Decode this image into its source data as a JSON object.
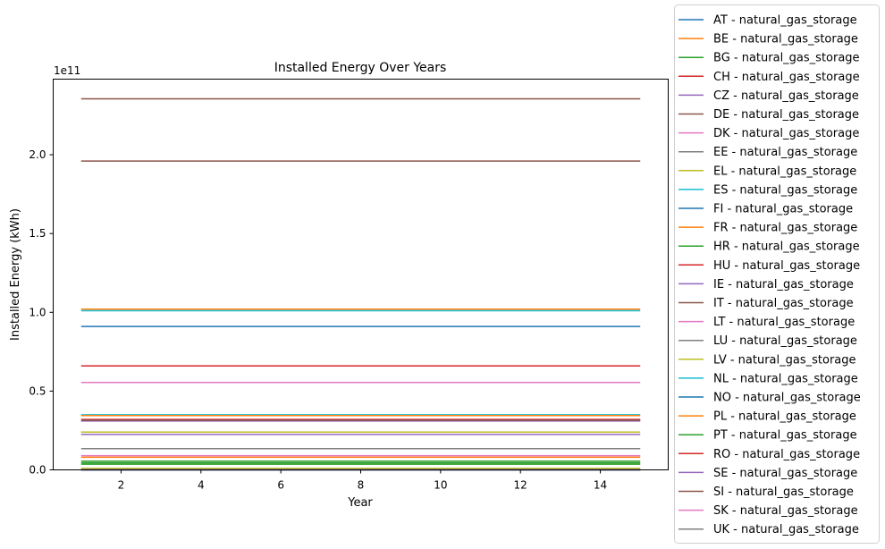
{
  "chart_data": {
    "type": "line",
    "title": "Installed Energy Over Years",
    "xlabel": "Year",
    "ylabel": "Installed Energy (kWh)",
    "y_offset_label": "1e11",
    "xlim": [
      0.3,
      15.7
    ],
    "ylim": [
      0,
      248000000000.0
    ],
    "x_ticks": [
      2,
      4,
      6,
      8,
      10,
      12,
      14
    ],
    "x_tick_labels": [
      "2",
      "4",
      "6",
      "8",
      "10",
      "12",
      "14"
    ],
    "y_ticks": [
      0,
      50000000000.0,
      100000000000.0,
      150000000000.0,
      200000000000.0
    ],
    "y_tick_labels": [
      "0.0",
      "0.5",
      "1.0",
      "1.5",
      "2.0"
    ],
    "grid": false,
    "legend_position": "outside right",
    "x": [
      1,
      2,
      3,
      4,
      5,
      6,
      7,
      8,
      9,
      10,
      11,
      12,
      13,
      14,
      15
    ],
    "series": [
      {
        "name": "AT - natural_gas_storage",
        "color": "#1f77b4",
        "value": 91000000000.0
      },
      {
        "name": "BE - natural_gas_storage",
        "color": "#ff7f0e",
        "value": 8000000000.0
      },
      {
        "name": "BG - natural_gas_storage",
        "color": "#2ca02c",
        "value": 5500000000.0
      },
      {
        "name": "CH - natural_gas_storage",
        "color": "#d62728",
        "value": 100000000.0
      },
      {
        "name": "CZ - natural_gas_storage",
        "color": "#9467bd",
        "value": 31000000000.0
      },
      {
        "name": "DE - natural_gas_storage",
        "color": "#8c564b",
        "value": 235500000000.0
      },
      {
        "name": "DK - natural_gas_storage",
        "color": "#e377c2",
        "value": 9000000000.0
      },
      {
        "name": "EE - natural_gas_storage",
        "color": "#7f7f7f",
        "value": 0
      },
      {
        "name": "EL - natural_gas_storage",
        "color": "#bcbd22",
        "value": 1000000000.0
      },
      {
        "name": "ES - natural_gas_storage",
        "color": "#17becf",
        "value": 35000000000.0
      },
      {
        "name": "FI - natural_gas_storage",
        "color": "#1f77b4",
        "value": 0
      },
      {
        "name": "FR - natural_gas_storage",
        "color": "#ff7f0e",
        "value": 102000000000.0
      },
      {
        "name": "HR - natural_gas_storage",
        "color": "#2ca02c",
        "value": 4500000000.0
      },
      {
        "name": "HU - natural_gas_storage",
        "color": "#d62728",
        "value": 66000000000.0
      },
      {
        "name": "IE - natural_gas_storage",
        "color": "#9467bd",
        "value": 22500000000.0
      },
      {
        "name": "IT - natural_gas_storage",
        "color": "#8c564b",
        "value": 196000000000.0
      },
      {
        "name": "LT - natural_gas_storage",
        "color": "#e377c2",
        "value": 0
      },
      {
        "name": "LU - natural_gas_storage",
        "color": "#7f7f7f",
        "value": 0
      },
      {
        "name": "LV - natural_gas_storage",
        "color": "#bcbd22",
        "value": 24000000000.0
      },
      {
        "name": "NL - natural_gas_storage",
        "color": "#17becf",
        "value": 101000000000.0
      },
      {
        "name": "NO - natural_gas_storage",
        "color": "#1f77b4",
        "value": 0
      },
      {
        "name": "PL - natural_gas_storage",
        "color": "#ff7f0e",
        "value": 34500000000.0
      },
      {
        "name": "PT - natural_gas_storage",
        "color": "#2ca02c",
        "value": 3600000000.0
      },
      {
        "name": "RO - natural_gas_storage",
        "color": "#d62728",
        "value": 32000000000.0
      },
      {
        "name": "SE - natural_gas_storage",
        "color": "#9467bd",
        "value": 100000000.0
      },
      {
        "name": "SI - natural_gas_storage",
        "color": "#8c564b",
        "value": 31500000000.0
      },
      {
        "name": "SK - natural_gas_storage",
        "color": "#e377c2",
        "value": 55500000000.0
      },
      {
        "name": "UK - natural_gas_storage",
        "color": "#7f7f7f",
        "value": 13500000000.0
      }
    ]
  }
}
